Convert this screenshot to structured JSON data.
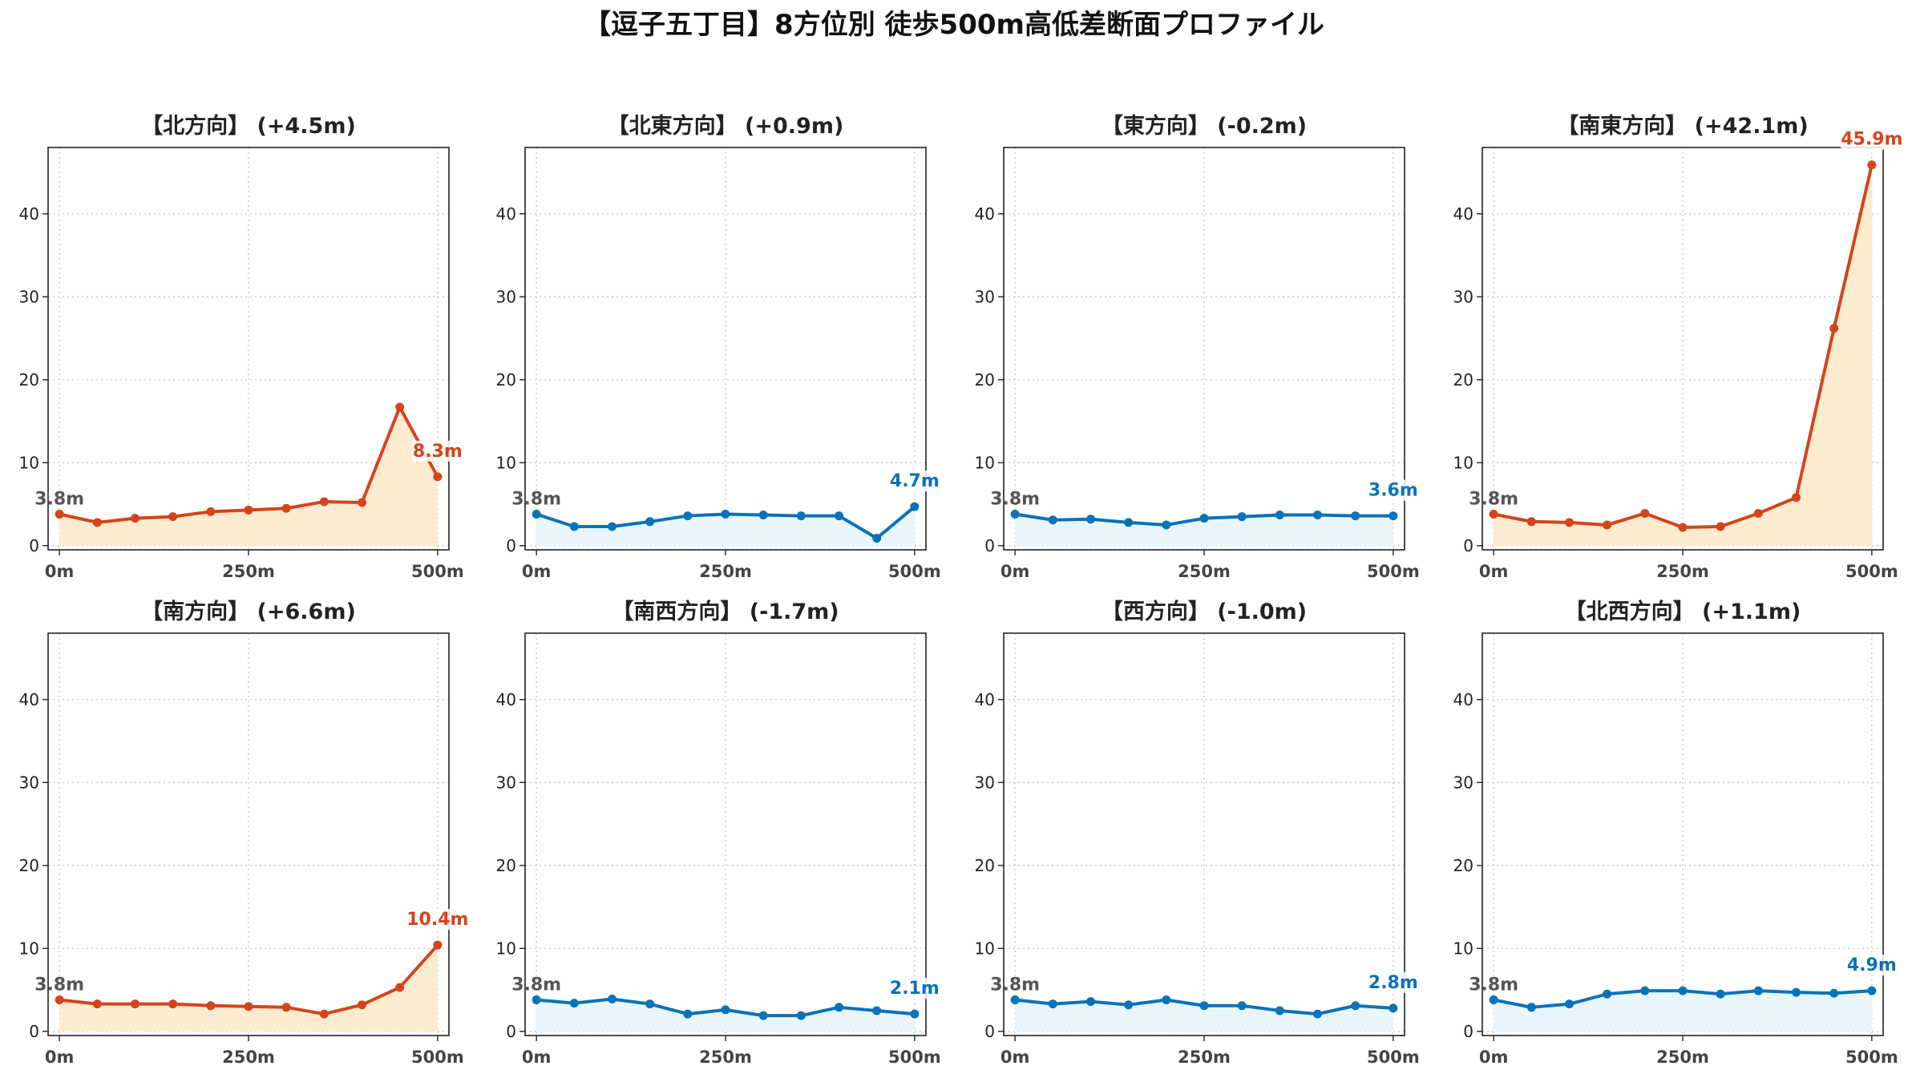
{
  "title": "【逗子五丁目】8方位別 徒歩500m高低差断面プロファイル",
  "colors": {
    "uphill_line": "#d4441a",
    "uphill_fill": "#fdebd0",
    "flat_line": "#0a72b8",
    "flat_fill": "#e8f6fc"
  },
  "chart_data": [
    {
      "type": "line",
      "title": "【北方向】 (+4.5m)",
      "style": "uphill",
      "x": [
        0,
        50,
        100,
        150,
        200,
        250,
        300,
        350,
        400,
        450,
        500
      ],
      "y": [
        3.8,
        2.8,
        3.3,
        3.5,
        4.1,
        4.3,
        4.5,
        5.3,
        5.2,
        16.7,
        8.3
      ],
      "start_label": "3.8m",
      "end_label": "8.3m",
      "xticks": [
        "0m",
        "250m",
        "500m"
      ],
      "yticks": [
        0,
        10,
        20,
        30,
        40
      ],
      "ylim": [
        -0.5,
        48
      ],
      "xlim": [
        -15,
        515
      ],
      "grid": true
    },
    {
      "type": "line",
      "title": "【北東方向】 (+0.9m)",
      "style": "flat",
      "x": [
        0,
        50,
        100,
        150,
        200,
        250,
        300,
        350,
        400,
        450,
        500
      ],
      "y": [
        3.8,
        2.3,
        2.3,
        2.9,
        3.6,
        3.8,
        3.7,
        3.6,
        3.6,
        0.9,
        4.7
      ],
      "start_label": "3.8m",
      "end_label": "4.7m",
      "xticks": [
        "0m",
        "250m",
        "500m"
      ],
      "yticks": [
        0,
        10,
        20,
        30,
        40
      ],
      "ylim": [
        -0.5,
        48
      ],
      "xlim": [
        -15,
        515
      ],
      "grid": true
    },
    {
      "type": "line",
      "title": "【東方向】 (-0.2m)",
      "style": "flat",
      "x": [
        0,
        50,
        100,
        150,
        200,
        250,
        300,
        350,
        400,
        450,
        500
      ],
      "y": [
        3.8,
        3.1,
        3.2,
        2.8,
        2.5,
        3.3,
        3.5,
        3.7,
        3.7,
        3.6,
        3.6
      ],
      "start_label": "3.8m",
      "end_label": "3.6m",
      "xticks": [
        "0m",
        "250m",
        "500m"
      ],
      "yticks": [
        0,
        10,
        20,
        30,
        40
      ],
      "ylim": [
        -0.5,
        48
      ],
      "xlim": [
        -15,
        515
      ],
      "grid": true
    },
    {
      "type": "line",
      "title": "【南東方向】 (+42.1m)",
      "style": "uphill",
      "x": [
        0,
        50,
        100,
        150,
        200,
        250,
        300,
        350,
        400,
        450,
        500
      ],
      "y": [
        3.8,
        2.9,
        2.8,
        2.5,
        3.9,
        2.2,
        2.3,
        3.9,
        5.8,
        26.2,
        45.9
      ],
      "start_label": "3.8m",
      "end_label": "45.9m",
      "xticks": [
        "0m",
        "250m",
        "500m"
      ],
      "yticks": [
        0,
        10,
        20,
        30,
        40
      ],
      "ylim": [
        -0.5,
        48
      ],
      "xlim": [
        -15,
        515
      ],
      "grid": true
    },
    {
      "type": "line",
      "title": "【南方向】 (+6.6m)",
      "style": "uphill",
      "x": [
        0,
        50,
        100,
        150,
        200,
        250,
        300,
        350,
        400,
        450,
        500
      ],
      "y": [
        3.8,
        3.3,
        3.3,
        3.3,
        3.1,
        3.0,
        2.9,
        2.1,
        3.2,
        5.3,
        10.4
      ],
      "start_label": "3.8m",
      "end_label": "10.4m",
      "xticks": [
        "0m",
        "250m",
        "500m"
      ],
      "yticks": [
        0,
        10,
        20,
        30,
        40
      ],
      "ylim": [
        -0.5,
        48
      ],
      "xlim": [
        -15,
        515
      ],
      "grid": true
    },
    {
      "type": "line",
      "title": "【南西方向】 (-1.7m)",
      "style": "flat",
      "x": [
        0,
        50,
        100,
        150,
        200,
        250,
        300,
        350,
        400,
        450,
        500
      ],
      "y": [
        3.8,
        3.4,
        3.9,
        3.3,
        2.1,
        2.6,
        1.9,
        1.9,
        2.9,
        2.5,
        2.1
      ],
      "start_label": "3.8m",
      "end_label": "2.1m",
      "xticks": [
        "0m",
        "250m",
        "500m"
      ],
      "yticks": [
        0,
        10,
        20,
        30,
        40
      ],
      "ylim": [
        -0.5,
        48
      ],
      "xlim": [
        -15,
        515
      ],
      "grid": true
    },
    {
      "type": "line",
      "title": "【西方向】 (-1.0m)",
      "style": "flat",
      "x": [
        0,
        50,
        100,
        150,
        200,
        250,
        300,
        350,
        400,
        450,
        500
      ],
      "y": [
        3.8,
        3.3,
        3.6,
        3.2,
        3.8,
        3.1,
        3.1,
        2.5,
        2.1,
        3.1,
        2.8
      ],
      "start_label": "3.8m",
      "end_label": "2.8m",
      "xticks": [
        "0m",
        "250m",
        "500m"
      ],
      "yticks": [
        0,
        10,
        20,
        30,
        40
      ],
      "ylim": [
        -0.5,
        48
      ],
      "xlim": [
        -15,
        515
      ],
      "grid": true
    },
    {
      "type": "line",
      "title": "【北西方向】 (+1.1m)",
      "style": "flat",
      "x": [
        0,
        50,
        100,
        150,
        200,
        250,
        300,
        350,
        400,
        450,
        500
      ],
      "y": [
        3.8,
        2.9,
        3.3,
        4.5,
        4.9,
        4.9,
        4.5,
        4.9,
        4.7,
        4.6,
        4.9
      ],
      "start_label": "3.8m",
      "end_label": "4.9m",
      "xticks": [
        "0m",
        "250m",
        "500m"
      ],
      "yticks": [
        0,
        10,
        20,
        30,
        40
      ],
      "ylim": [
        -0.5,
        48
      ],
      "xlim": [
        -15,
        515
      ],
      "grid": true
    }
  ]
}
